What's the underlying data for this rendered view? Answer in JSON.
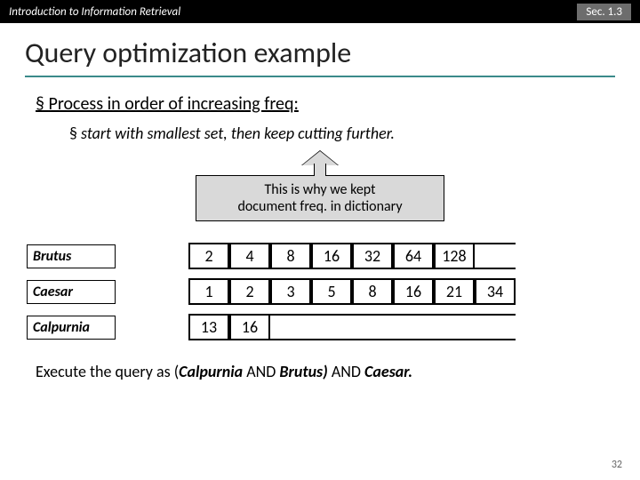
{
  "header": {
    "left": "Introduction to Information Retrieval",
    "right": "Sec. 1.3"
  },
  "title": "Query optimization example",
  "bullet1": "Process in order of increasing freq:",
  "bullet2": "start with smallest set, then keep cutting further.",
  "callout_l1": "This is why we kept",
  "callout_l2": "document freq. in dictionary",
  "terms": {
    "brutus": {
      "label": "Brutus",
      "postings": [
        "2",
        "4",
        "8",
        "16",
        "32",
        "64",
        "128",
        ""
      ]
    },
    "caesar": {
      "label": "Caesar",
      "postings": [
        "1",
        "2",
        "3",
        "5",
        "8",
        "16",
        "21",
        "34"
      ]
    },
    "calpurnia": {
      "label": "Calpurnia",
      "postings": [
        "13",
        "16",
        "",
        "",
        "",
        "",
        "",
        ""
      ]
    }
  },
  "footer_pre": "Execute the query as (",
  "footer_q1": "Calpurnia",
  "footer_and1": " AND ",
  "footer_q2": "Brutus)",
  "footer_and2": " AND ",
  "footer_q3": "Caesar.",
  "page": "32",
  "glyph": ""
}
